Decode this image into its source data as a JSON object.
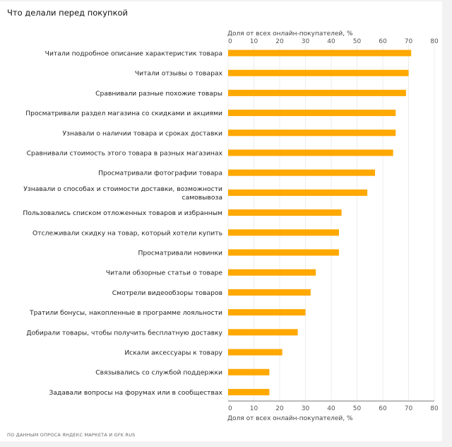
{
  "page": {
    "title": "Что делали перед покупкой",
    "source": "ПО ДАННЫМ ОПРОСА ЯНДЕКС МАРКЕТА И GFK RUS"
  },
  "chart_data": {
    "type": "bar",
    "orientation": "horizontal",
    "title": "Что делали перед покупкой",
    "xlabel": "Доля от всех онлайн-покупателей, %",
    "ylabel": "",
    "xlim": [
      0,
      80
    ],
    "xticks": [
      0,
      10,
      20,
      30,
      40,
      50,
      60,
      70,
      80
    ],
    "grid": true,
    "bar_color": "#FFA800",
    "categories": [
      "Читали подробное описание характеристик товара",
      "Читали отзывы о товарах",
      "Сравнивали разные похожие товары",
      "Просматривали раздел магазина со скидками и акциями",
      "Узнавали о наличии товара и сроках доставки",
      "Сравнивали стоимость этого товара в разных магазинах",
      "Просматривали фотографии товара",
      "Узнавали о способах и стоимости доставки, возможности самовывоза",
      "Пользовались списком отложенных товаров и избранным",
      "Отслеживали скидку на товар, который хотели купить",
      "Просматривали новинки",
      "Читали обзорные статьи о товаре",
      "Смотрели видеообзоры товаров",
      "Тратили бонусы, накопленные в программе лояльности",
      "Добирали товары, чтобы получить бесплатную доставку",
      "Искали аксессуары к товару",
      "Связывались со службой поддержки",
      "Задавали вопросы на форумах или в сообществах"
    ],
    "label_lines": [
      [
        "Читали подробное описание характеристик товара"
      ],
      [
        "Читали отзывы о товарах"
      ],
      [
        "Сравнивали разные похожие товары"
      ],
      [
        "Просматривали раздел магазина со скидками и акциями"
      ],
      [
        "Узнавали о наличии товара и сроках доставки"
      ],
      [
        "Сравнивали стоимость этого товара в разных магазинах"
      ],
      [
        "Просматривали фотографии товара"
      ],
      [
        "Узнавали о способах и стоимости доставки, возможности",
        "самовывоза"
      ],
      [
        "Пользовались списком отложенных товаров и избранным"
      ],
      [
        "Отслеживали скидку на товар, который хотели купить"
      ],
      [
        "Просматривали новинки"
      ],
      [
        "Читали обзорные статьи о товаре"
      ],
      [
        "Смотрели видеообзоры товаров"
      ],
      [
        "Тратили бонусы, накопленные в программе лояльности"
      ],
      [
        "Добирали товары, чтобы получить бесплатную доставку"
      ],
      [
        "Искали аксессуары к товару"
      ],
      [
        "Связывались со службой поддержки"
      ],
      [
        "Задавали вопросы на форумах или в сообществах"
      ]
    ],
    "values": [
      71,
      70,
      69,
      65,
      65,
      64,
      57,
      54,
      44,
      43,
      43,
      34,
      32,
      30,
      27,
      21,
      16,
      16
    ]
  }
}
